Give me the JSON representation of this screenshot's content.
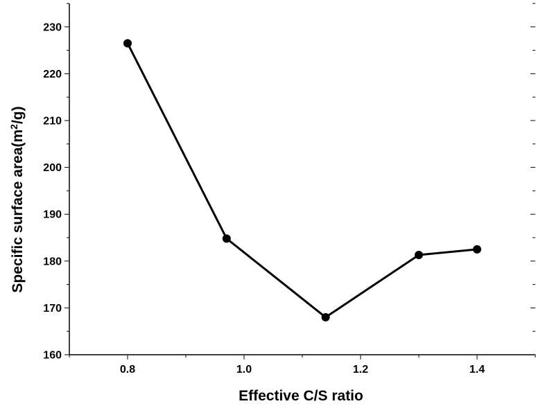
{
  "chart_data": {
    "type": "line",
    "xlabel": "Effective C/S ratio",
    "ylabel": "Specific surface area(m",
    "ylabel_sup": "2",
    "ylabel_suffix": "/g)",
    "x": [
      0.8,
      0.97,
      1.14,
      1.3,
      1.4
    ],
    "series": [
      {
        "values": [
          226.5,
          184.8,
          168.0,
          181.3,
          182.5
        ]
      }
    ],
    "xlim": [
      0.7,
      1.5
    ],
    "ylim": [
      160,
      235
    ],
    "x_ticks": [
      0.8,
      1.0,
      1.2,
      1.4
    ],
    "x_tick_labels": [
      "0.8",
      "1.0",
      "1.2",
      "1.4"
    ],
    "y_ticks": [
      160,
      170,
      180,
      190,
      200,
      210,
      220,
      230
    ],
    "y_tick_labels": [
      "160",
      "170",
      "180",
      "190",
      "200",
      "210",
      "220",
      "230"
    ],
    "grid": false,
    "legend": false,
    "line_color": "#000000",
    "marker_color": "#000000"
  }
}
